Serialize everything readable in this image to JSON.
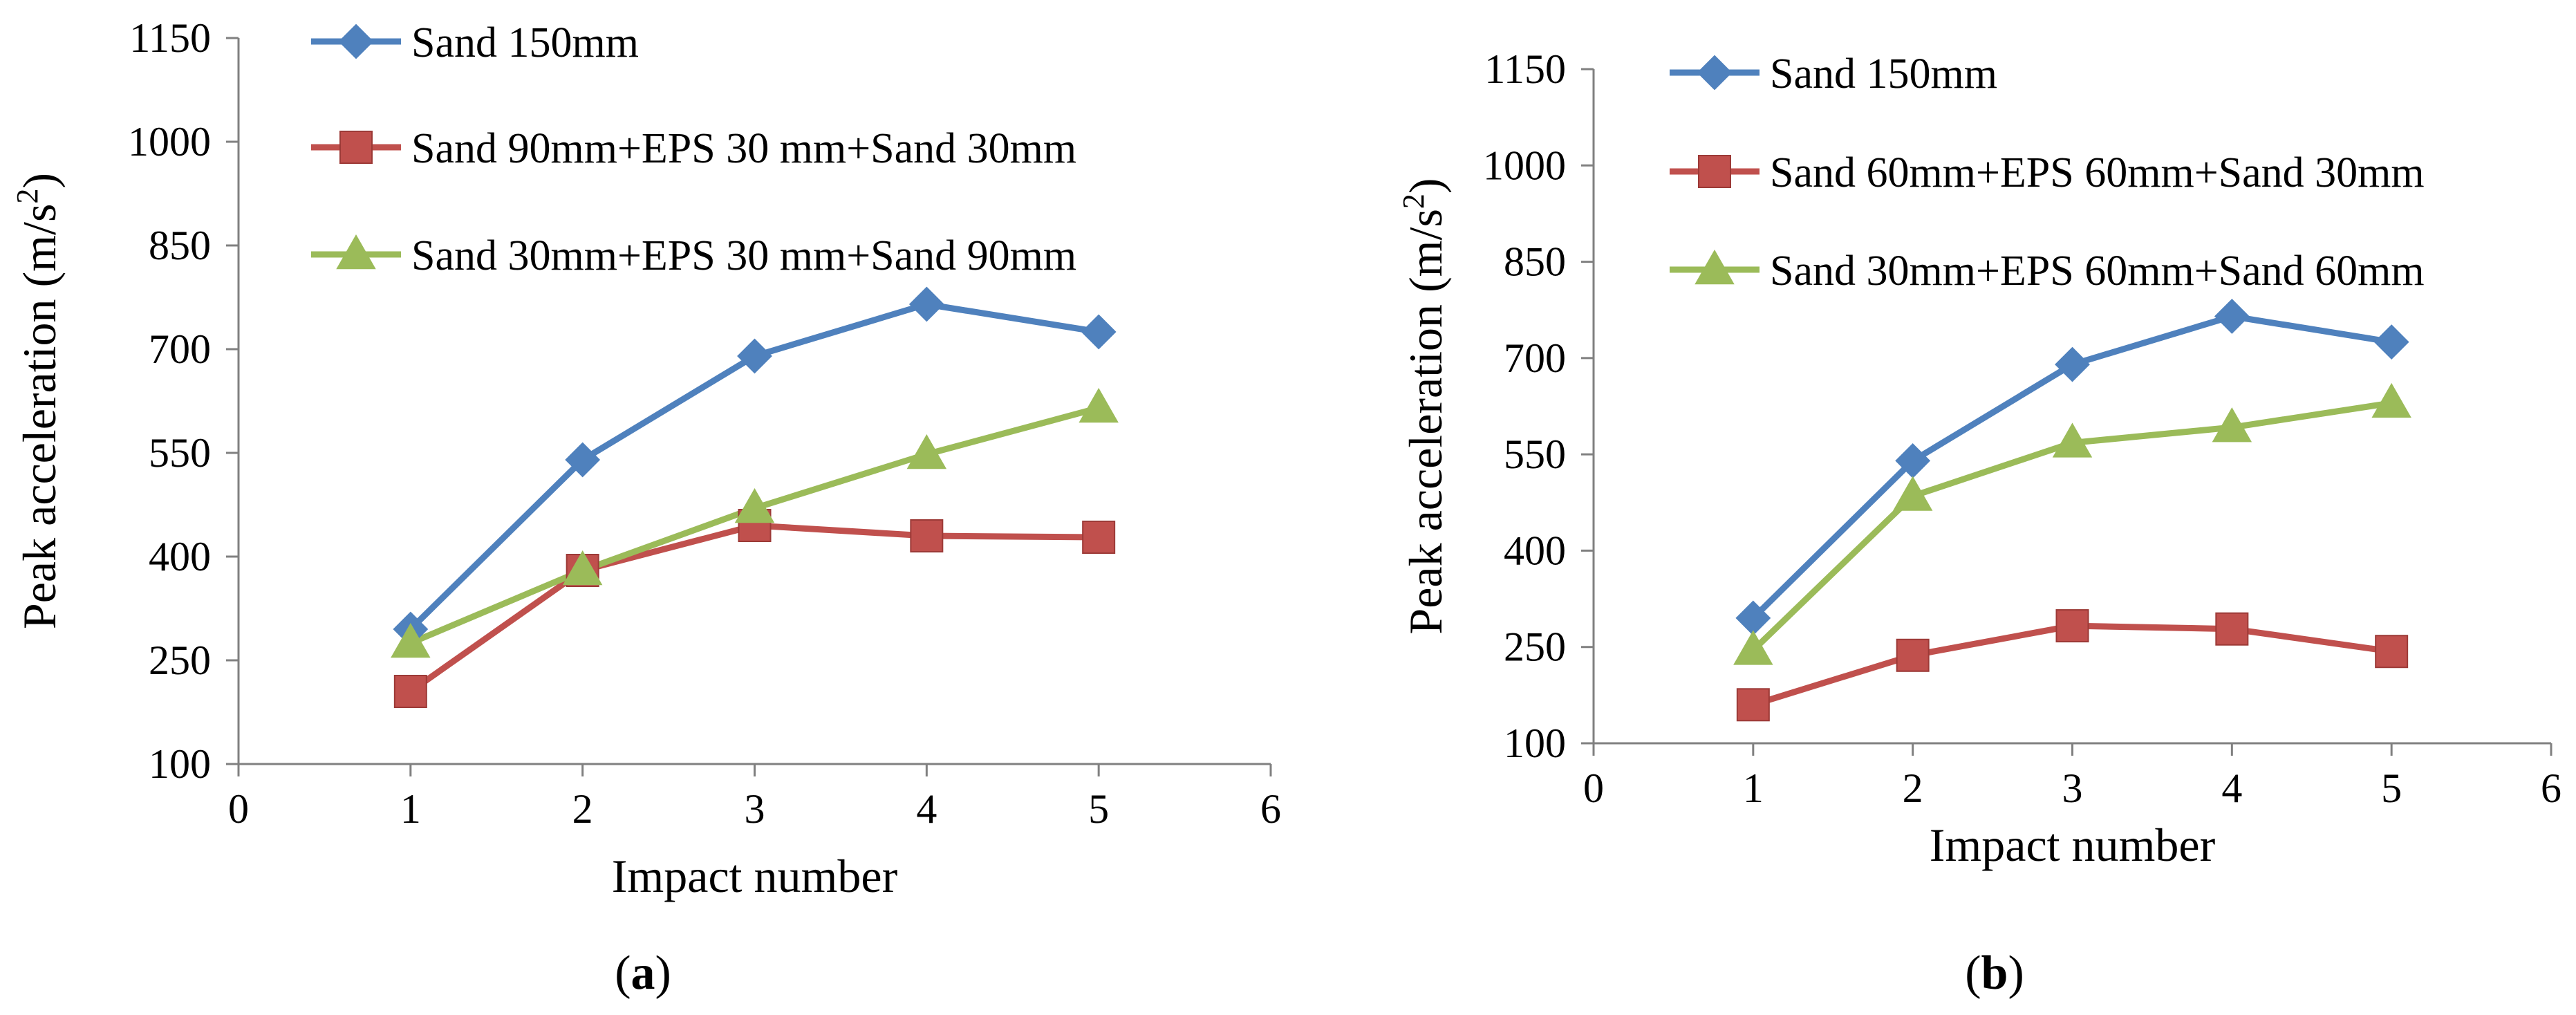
{
  "chart_data": [
    {
      "type": "line",
      "caption_letter": "a",
      "xlabel": "Impact number",
      "ylabel_main": "Peak acceleration (m/s",
      "ylabel_sup": "2",
      "ylabel_close": ")",
      "xlim": [
        0,
        6
      ],
      "ylim": [
        100,
        1150
      ],
      "xticks": [
        0,
        1,
        2,
        3,
        4,
        5,
        6
      ],
      "yticks": [
        100,
        250,
        400,
        550,
        700,
        850,
        1000,
        1150
      ],
      "x": [
        1,
        2,
        3,
        4,
        5
      ],
      "series": [
        {
          "name": "Sand 150mm",
          "color": "#4F81BD",
          "marker": "diamond",
          "values": [
            295,
            540,
            690,
            765,
            725
          ]
        },
        {
          "name": "Sand 90mm+EPS 30 mm+Sand 30mm",
          "color": "#C0504D",
          "marker": "square",
          "values": [
            205,
            380,
            445,
            430,
            428
          ]
        },
        {
          "name": "Sand 30mm+EPS 30 mm+Sand 90mm",
          "color": "#9BBB59",
          "marker": "triangle",
          "values": [
            275,
            380,
            470,
            548,
            615
          ]
        }
      ]
    },
    {
      "type": "line",
      "caption_letter": "b",
      "xlabel": "Impact number",
      "ylabel_main": "Peak acceleration (m/s",
      "ylabel_sup": "2",
      "ylabel_close": ")",
      "xlim": [
        0,
        6
      ],
      "ylim": [
        100,
        1150
      ],
      "xticks": [
        0,
        1,
        2,
        3,
        4,
        5,
        6
      ],
      "yticks": [
        100,
        250,
        400,
        550,
        700,
        850,
        1000,
        1150
      ],
      "x": [
        1,
        2,
        3,
        4,
        5
      ],
      "series": [
        {
          "name": "Sand 150mm",
          "color": "#4F81BD",
          "marker": "diamond",
          "values": [
            295,
            540,
            690,
            765,
            725
          ]
        },
        {
          "name": "Sand 60mm+EPS 60mm+Sand 30mm",
          "color": "#C0504D",
          "marker": "square",
          "values": [
            160,
            237,
            283,
            278,
            243
          ]
        },
        {
          "name": "Sand 30mm+EPS 60mm+Sand 60mm",
          "color": "#9BBB59",
          "marker": "triangle",
          "values": [
            245,
            485,
            568,
            592,
            630
          ]
        }
      ]
    }
  ]
}
